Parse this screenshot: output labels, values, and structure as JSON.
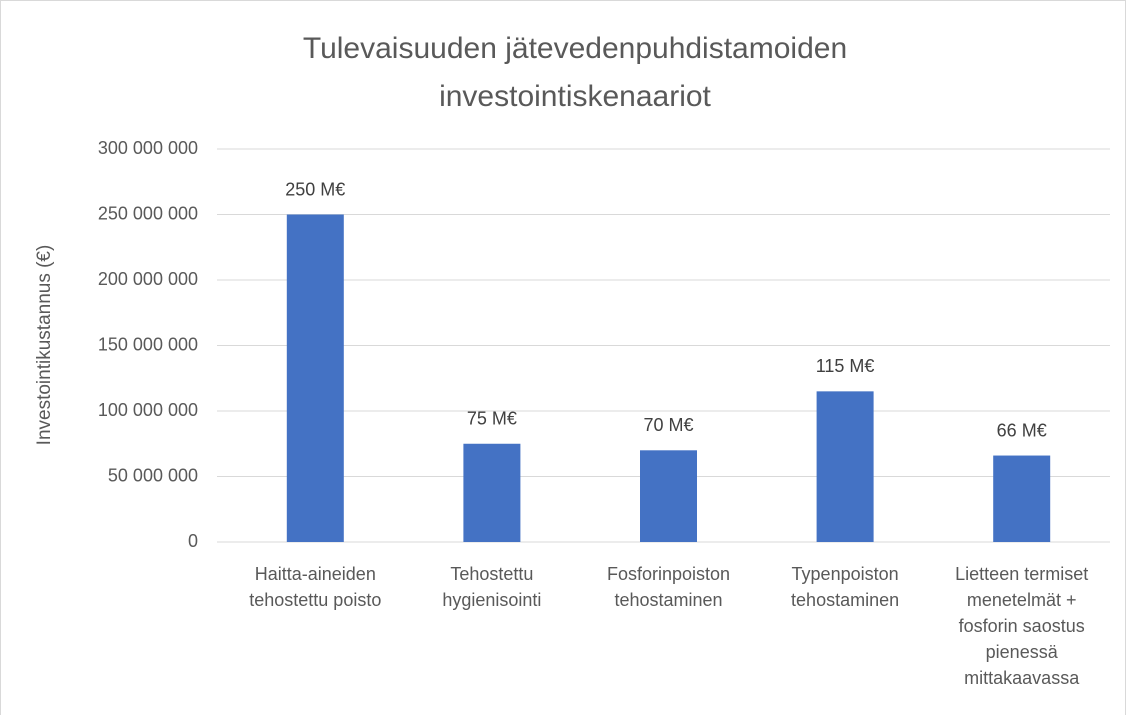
{
  "chart_data": {
    "type": "bar",
    "title": [
      "Tulevaisuuden jätevedenpuhdistamoiden",
      "investointiskenaariot"
    ],
    "y_label": "Investointikustannus (€)",
    "categories": [
      [
        "Haitta-aineiden",
        "tehostettu poisto"
      ],
      [
        "Tehostettu",
        "hygienisointi"
      ],
      [
        "Fosforinpoiston",
        "tehostaminen"
      ],
      [
        "Typenpoiston",
        "tehostaminen"
      ],
      [
        "Lietteen termiset",
        "menetelmät +",
        "fosforin saostus",
        "pienessä",
        "mittakaavassa"
      ]
    ],
    "values": [
      250000000,
      75000000,
      70000000,
      115000000,
      66000000
    ],
    "value_labels": [
      "250 M€",
      "75 M€",
      "70 M€",
      "115 M€",
      "66 M€"
    ],
    "color": "#4472c4",
    "ylim": [
      0,
      300000000
    ],
    "yticks": [
      0,
      {
        "value": 50000000,
        "label": "50 000 000"
      },
      {
        "value": 100000000,
        "label": "100 000 000"
      },
      {
        "value": 150000000,
        "label": "150 000 000"
      },
      {
        "value": 200000000,
        "label": "200 000 000"
      },
      {
        "value": 250000000,
        "label": "250 000 000"
      },
      {
        "value": 300000000,
        "label": "300 000 000"
      }
    ],
    "grid": true
  }
}
